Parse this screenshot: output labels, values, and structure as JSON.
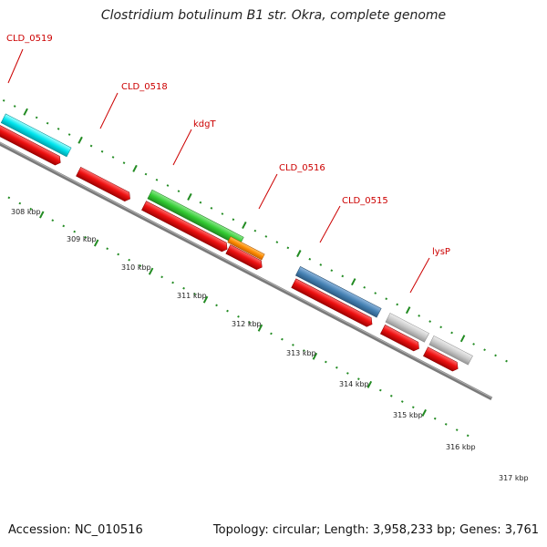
{
  "title": "Clostridium botulinum B1 str. Okra, complete genome",
  "footer": {
    "accession": "Accession: NC_010516",
    "summary": "Topology: circular; Length: 3,958,233 bp; Genes: 3,761"
  },
  "colors": {
    "backbone": "#7a7a7a",
    "cds": "#ee1111",
    "tick": "#228b22",
    "label": "#cc0000"
  },
  "gene_labels": [
    "CLD_0519",
    "CLD_0518",
    "kdgT",
    "CLD_0516",
    "CLD_0515",
    "lysP"
  ],
  "kbp_labels": [
    "308 kbp",
    "309 kbp",
    "310 kbp",
    "311 kbp",
    "312 kbp",
    "313 kbp",
    "314 kbp",
    "315 kbp",
    "316 kbp",
    "317 kbp"
  ],
  "upper_track_colors": [
    "#00e5ee",
    "#33cc33",
    "#ff8c00",
    "#4682b4",
    "#c8c8c8",
    "#c8c8c8"
  ]
}
